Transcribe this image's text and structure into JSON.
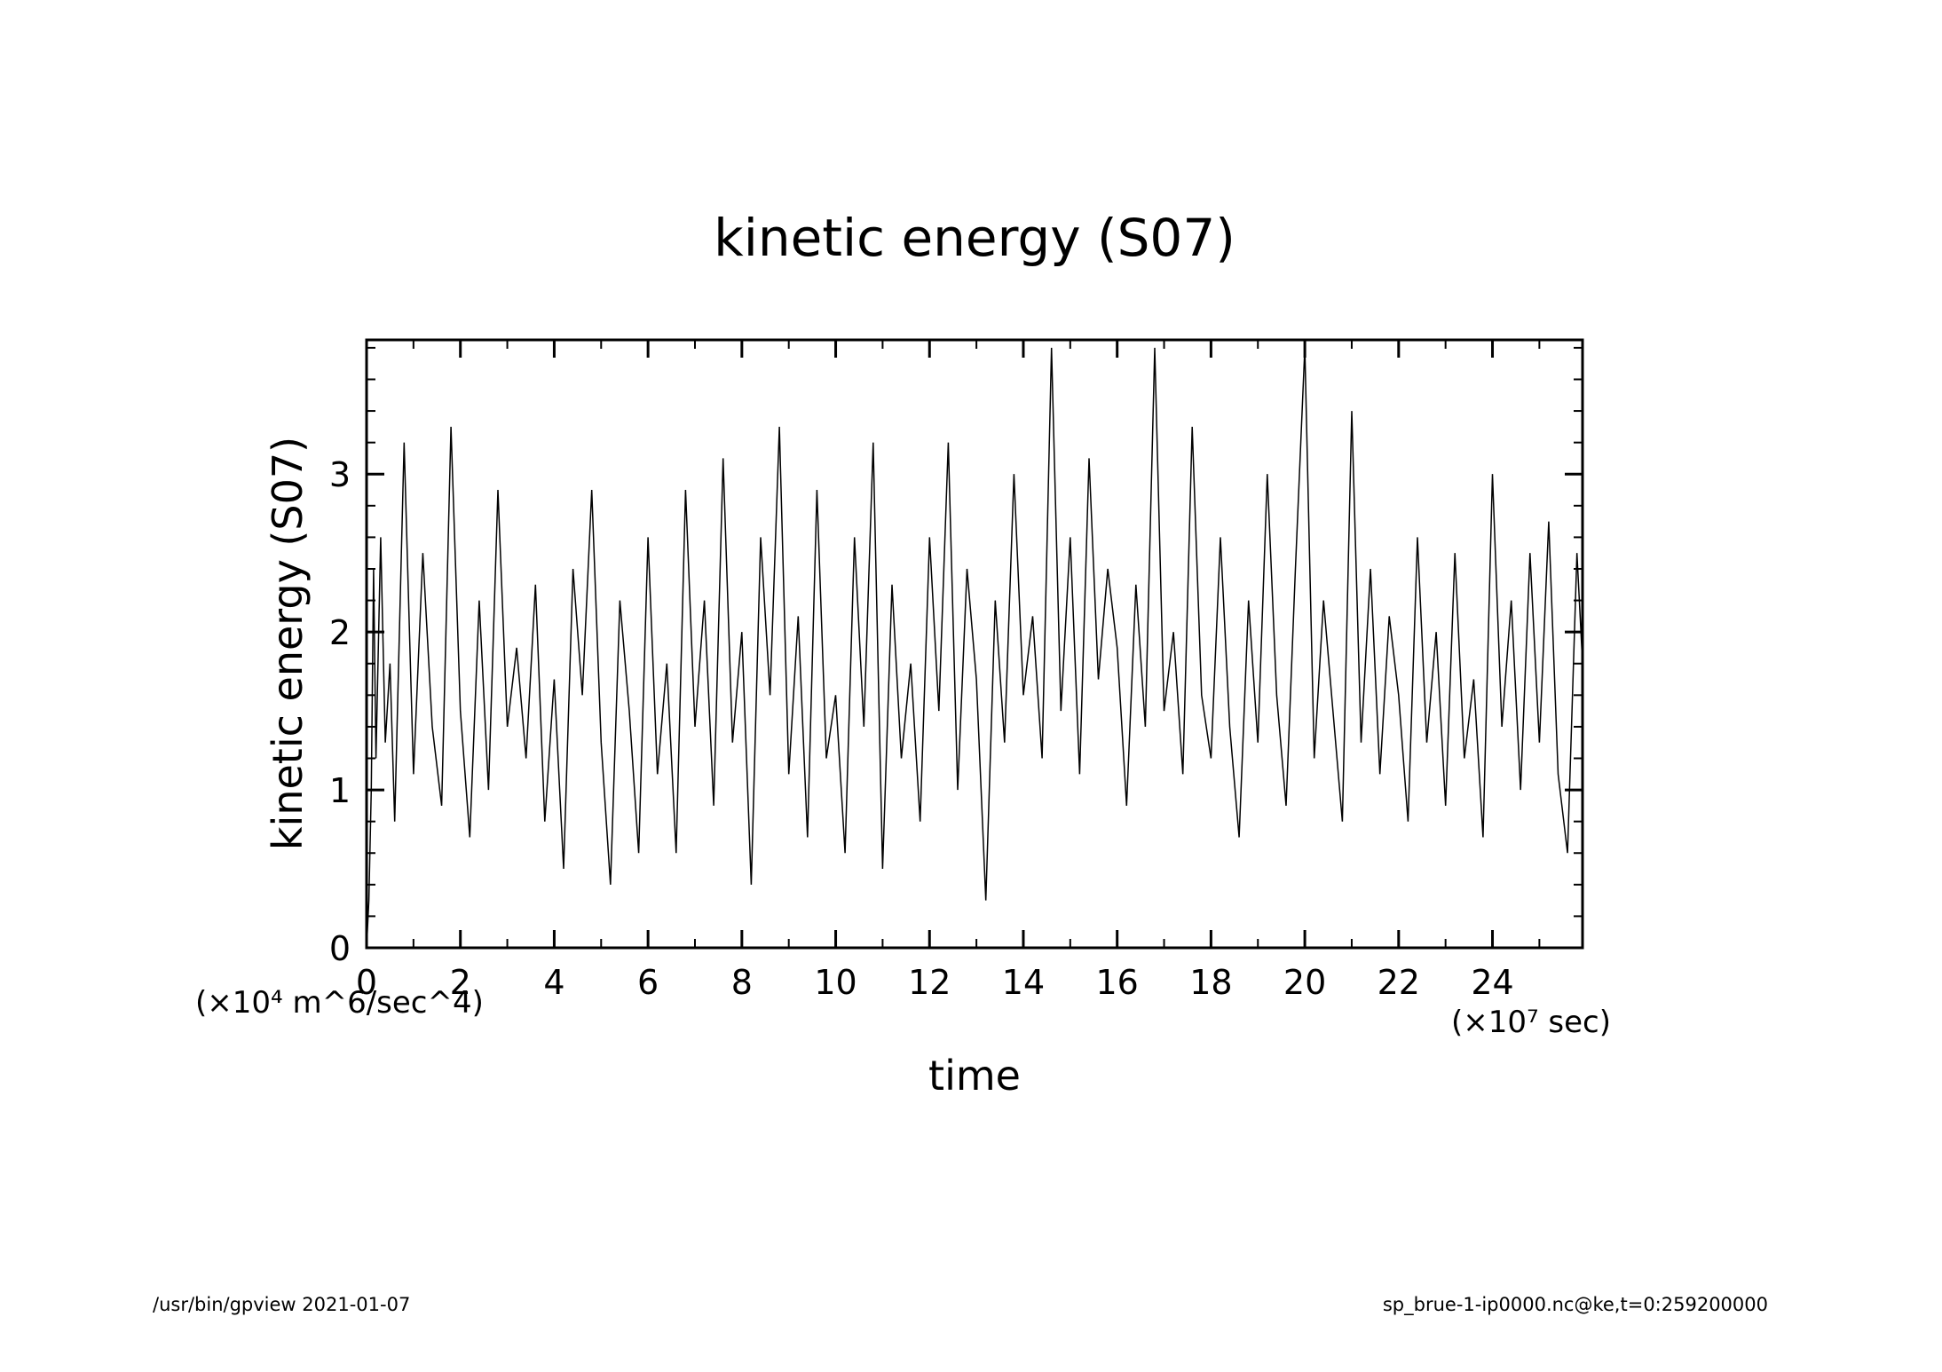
{
  "footer": {
    "left": "/usr/bin/gpview   2021-01-07",
    "right": "sp_brue-1-ip0000.nc@ke,t=0:259200000"
  },
  "chart_data": {
    "type": "line",
    "title": "kinetic energy (S07)",
    "xlabel": "time",
    "ylabel": "kinetic energy (S07)",
    "x_unit_label": "(×10⁷ sec)",
    "y_unit_label": "(×10⁴ m^6/sec^4)",
    "xlim": [
      0,
      25.92
    ],
    "ylim": [
      0,
      3.85
    ],
    "x_ticks": [
      0,
      2,
      4,
      6,
      8,
      10,
      12,
      14,
      16,
      18,
      20,
      22,
      24
    ],
    "x_tick_labels": [
      "0",
      "2",
      "4",
      "6",
      "8",
      "10",
      "12",
      "14",
      "16",
      "18",
      "20",
      "22",
      "24"
    ],
    "y_ticks": [
      0,
      1,
      2,
      3
    ],
    "y_tick_labels": [
      "0",
      "1",
      "2",
      "3"
    ],
    "grid": false,
    "legend": "none",
    "color": "#000000",
    "series": [
      {
        "x": [
          0,
          0.05,
          0.1,
          0.15,
          0.2,
          0.3,
          0.4,
          0.5,
          0.6,
          0.8,
          1.0,
          1.2,
          1.4,
          1.6,
          1.8,
          2.0,
          2.2,
          2.4,
          2.6,
          2.8,
          3.0,
          3.2,
          3.4,
          3.6,
          3.8,
          4.0,
          4.2,
          4.4,
          4.6,
          4.8,
          5.0,
          5.2,
          5.4,
          5.6,
          5.8,
          6.0,
          6.2,
          6.4,
          6.6,
          6.8,
          7.0,
          7.2,
          7.4,
          7.6,
          7.8,
          8.0,
          8.2,
          8.4,
          8.6,
          8.8,
          9.0,
          9.2,
          9.4,
          9.6,
          9.8,
          10.0,
          10.2,
          10.4,
          10.6,
          10.8,
          11.0,
          11.2,
          11.4,
          11.6,
          11.8,
          12.0,
          12.2,
          12.4,
          12.6,
          12.8,
          13.0,
          13.2,
          13.4,
          13.6,
          13.8,
          14.0,
          14.2,
          14.4,
          14.6,
          14.8,
          15.0,
          15.2,
          15.4,
          15.6,
          15.8,
          16.0,
          16.2,
          16.4,
          16.6,
          16.8,
          17.0,
          17.2,
          17.4,
          17.6,
          17.8,
          18.0,
          18.2,
          18.4,
          18.6,
          18.8,
          19.0,
          19.2,
          19.4,
          19.6,
          19.8,
          20.0,
          20.2,
          20.4,
          20.6,
          20.8,
          21.0,
          21.2,
          21.4,
          21.6,
          21.8,
          22.0,
          22.2,
          22.4,
          22.6,
          22.8,
          23.0,
          23.2,
          23.4,
          23.6,
          23.8,
          24.0,
          24.2,
          24.4,
          24.6,
          24.8,
          25.0,
          25.2,
          25.4,
          25.6,
          25.8,
          25.92
        ],
        "y": [
          0.0,
          0.3,
          1.0,
          2.4,
          1.2,
          2.6,
          1.3,
          1.8,
          0.8,
          3.2,
          1.1,
          2.5,
          1.4,
          0.9,
          3.3,
          1.5,
          0.7,
          2.2,
          1.0,
          2.9,
          1.4,
          1.9,
          1.2,
          2.3,
          0.8,
          1.7,
          0.5,
          2.4,
          1.6,
          2.9,
          1.3,
          0.4,
          2.2,
          1.5,
          0.6,
          2.6,
          1.1,
          1.8,
          0.6,
          2.9,
          1.4,
          2.2,
          0.9,
          3.1,
          1.3,
          2.0,
          0.4,
          2.6,
          1.6,
          3.3,
          1.1,
          2.1,
          0.7,
          2.9,
          1.2,
          1.6,
          0.6,
          2.6,
          1.4,
          3.2,
          0.5,
          2.3,
          1.2,
          1.8,
          0.8,
          2.6,
          1.5,
          3.2,
          1.0,
          2.4,
          1.7,
          0.3,
          2.2,
          1.3,
          3.0,
          1.6,
          2.1,
          1.2,
          3.8,
          1.5,
          2.6,
          1.1,
          3.1,
          1.7,
          2.4,
          1.9,
          0.9,
          2.3,
          1.4,
          3.8,
          1.5,
          2.0,
          1.1,
          3.3,
          1.6,
          1.2,
          2.6,
          1.4,
          0.7,
          2.2,
          1.3,
          3.0,
          1.6,
          0.9,
          2.4,
          3.8,
          1.2,
          2.2,
          1.5,
          0.8,
          3.4,
          1.3,
          2.4,
          1.1,
          2.1,
          1.6,
          0.8,
          2.6,
          1.3,
          2.0,
          0.9,
          2.5,
          1.2,
          1.7,
          0.7,
          3.0,
          1.4,
          2.2,
          1.0,
          2.5,
          1.3,
          2.7,
          1.1,
          0.6,
          2.5,
          1.8
        ]
      }
    ]
  }
}
